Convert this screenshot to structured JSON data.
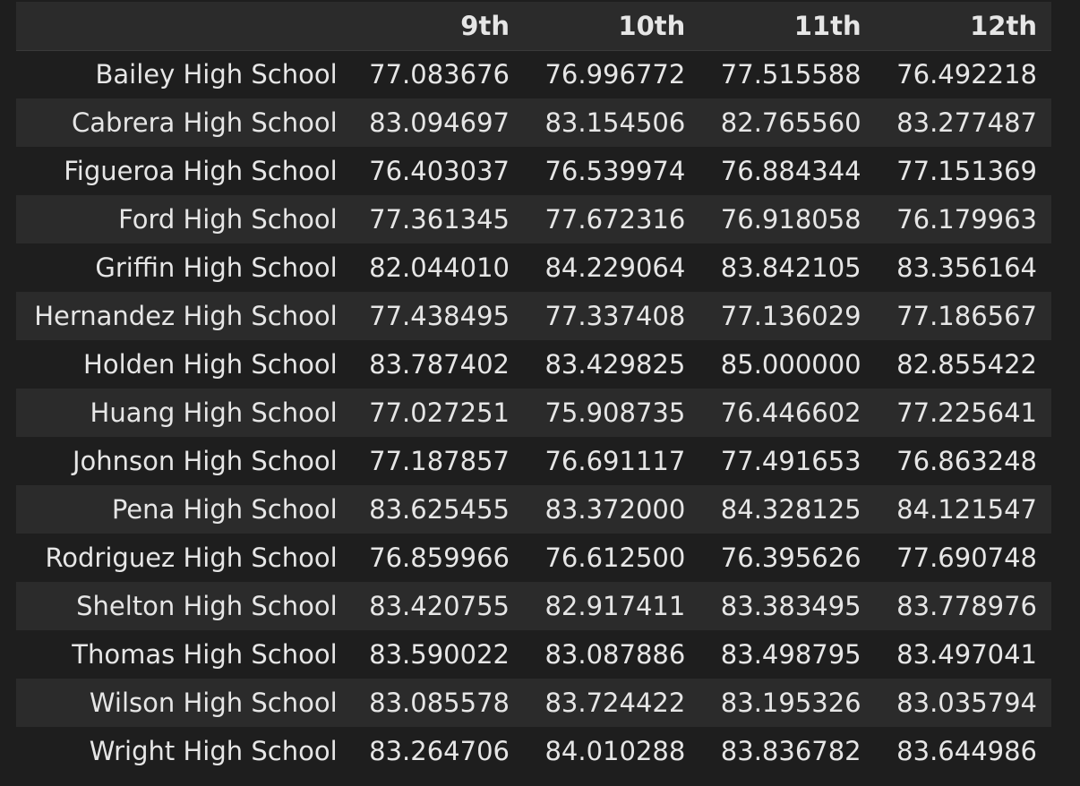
{
  "table": {
    "columns": [
      "",
      "9th",
      "10th",
      "11th",
      "12th"
    ],
    "rows": [
      {
        "school": "Bailey High School",
        "values": [
          "77.083676",
          "76.996772",
          "77.515588",
          "76.492218"
        ]
      },
      {
        "school": "Cabrera High School",
        "values": [
          "83.094697",
          "83.154506",
          "82.765560",
          "83.277487"
        ]
      },
      {
        "school": "Figueroa High School",
        "values": [
          "76.403037",
          "76.539974",
          "76.884344",
          "77.151369"
        ]
      },
      {
        "school": "Ford High School",
        "values": [
          "77.361345",
          "77.672316",
          "76.918058",
          "76.179963"
        ]
      },
      {
        "school": "Griffin High School",
        "values": [
          "82.044010",
          "84.229064",
          "83.842105",
          "83.356164"
        ]
      },
      {
        "school": "Hernandez High School",
        "values": [
          "77.438495",
          "77.337408",
          "77.136029",
          "77.186567"
        ]
      },
      {
        "school": "Holden High School",
        "values": [
          "83.787402",
          "83.429825",
          "85.000000",
          "82.855422"
        ]
      },
      {
        "school": "Huang High School",
        "values": [
          "77.027251",
          "75.908735",
          "76.446602",
          "77.225641"
        ]
      },
      {
        "school": "Johnson High School",
        "values": [
          "77.187857",
          "76.691117",
          "77.491653",
          "76.863248"
        ]
      },
      {
        "school": "Pena High School",
        "values": [
          "83.625455",
          "83.372000",
          "84.328125",
          "84.121547"
        ]
      },
      {
        "school": "Rodriguez High School",
        "values": [
          "76.859966",
          "76.612500",
          "76.395626",
          "77.690748"
        ]
      },
      {
        "school": "Shelton High School",
        "values": [
          "83.420755",
          "82.917411",
          "83.383495",
          "83.778976"
        ]
      },
      {
        "school": "Thomas High School",
        "values": [
          "83.590022",
          "83.087886",
          "83.498795",
          "83.497041"
        ]
      },
      {
        "school": "Wilson High School",
        "values": [
          "83.085578",
          "83.724422",
          "83.195326",
          "83.035794"
        ]
      },
      {
        "school": "Wright High School",
        "values": [
          "83.264706",
          "84.010288",
          "83.836782",
          "83.644986"
        ]
      }
    ]
  },
  "colors": {
    "background": "#1e1e1e",
    "row_alt": "#2b2b2b",
    "text": "#e6e6e6"
  }
}
